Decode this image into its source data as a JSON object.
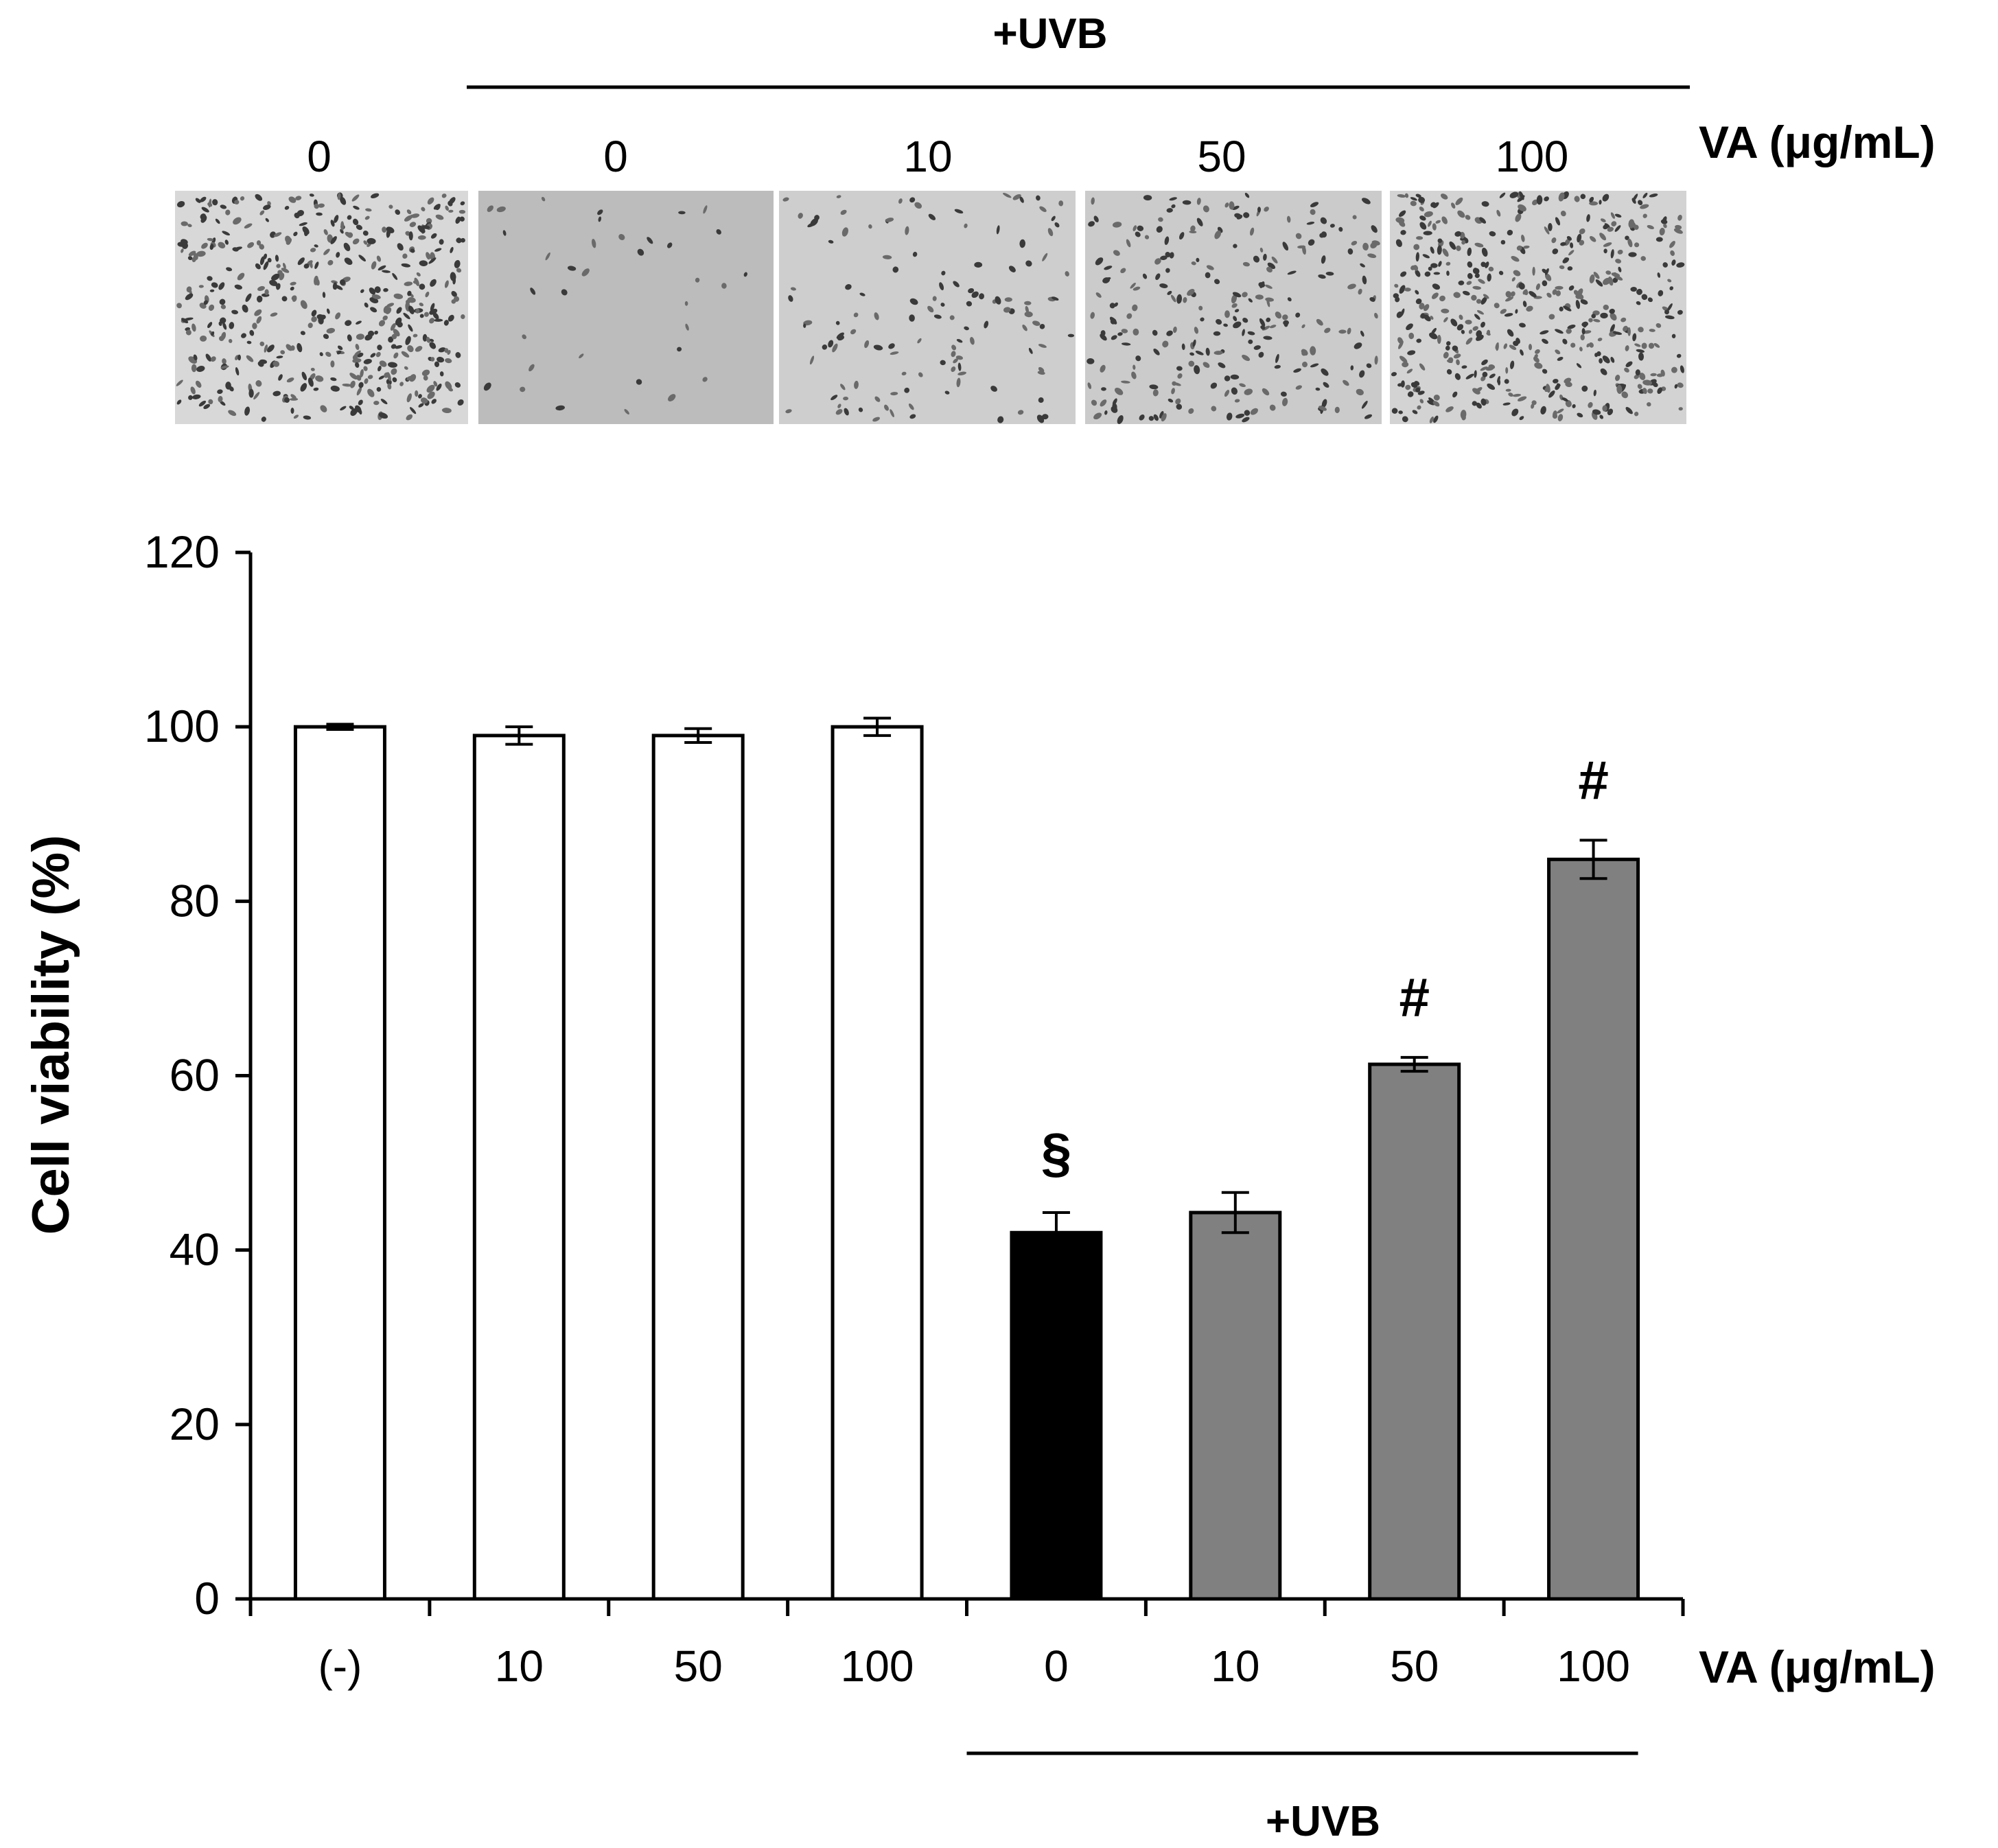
{
  "top_panel": {
    "group_label": "+UVB",
    "concentration_label": "VA (μg/mL)",
    "image_labels": [
      "0",
      "0",
      "10",
      "50",
      "100"
    ],
    "micrographs": [
      {
        "name": "micrograph-control",
        "cell_density": "high",
        "background": "#d8d8d8"
      },
      {
        "name": "micrograph-uvb-0",
        "cell_density": "very-low",
        "background": "#bcbcbc"
      },
      {
        "name": "micrograph-uvb-10",
        "cell_density": "low",
        "background": "#cecece"
      },
      {
        "name": "micrograph-uvb-50",
        "cell_density": "medium",
        "background": "#cbcbcb"
      },
      {
        "name": "micrograph-uvb-100",
        "cell_density": "high",
        "background": "#d3d3d3"
      }
    ]
  },
  "chart_data": {
    "type": "bar",
    "ylabel": "Cell viability (%)",
    "xlabel": "VA (μg/mL)",
    "ylim": [
      0,
      120
    ],
    "yticks": [
      0,
      20,
      40,
      60,
      80,
      100,
      120
    ],
    "categories": [
      "(-)",
      "10",
      "50",
      "100",
      "0",
      "10",
      "50",
      "100"
    ],
    "values": [
      100,
      99,
      99,
      100,
      42,
      44.3,
      61.3,
      84.8
    ],
    "errors": [
      0.3,
      1.0,
      0.8,
      1.0,
      2.3,
      2.3,
      0.8,
      2.2
    ],
    "colors": [
      "#ffffff",
      "#ffffff",
      "#ffffff",
      "#ffffff",
      "#000000",
      "#808080",
      "#808080",
      "#808080"
    ],
    "annotations": [
      "",
      "",
      "",
      "",
      "§",
      "",
      "#",
      "#"
    ],
    "group_bracket": {
      "label": "+UVB",
      "from_index": 4,
      "to_index": 7
    },
    "grid": false,
    "legend": "none"
  }
}
